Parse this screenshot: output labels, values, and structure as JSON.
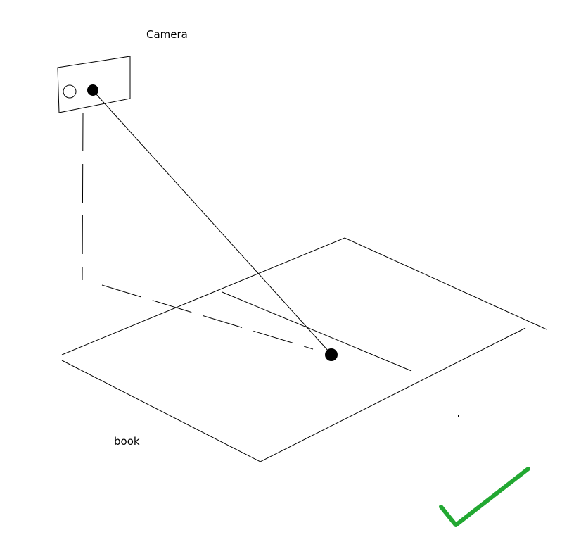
{
  "labels": {
    "camera": "Camera",
    "book": "book"
  },
  "icons": {
    "camera_body": "camera-rectangle",
    "camera_lens_open": "hollow-circle",
    "camera_lens_filled": "filled-circle",
    "target_point": "filled-dot",
    "approval": "check-mark-icon"
  },
  "colors": {
    "stroke": "#000000",
    "check_mark": "#22a832",
    "background": "#ffffff"
  }
}
